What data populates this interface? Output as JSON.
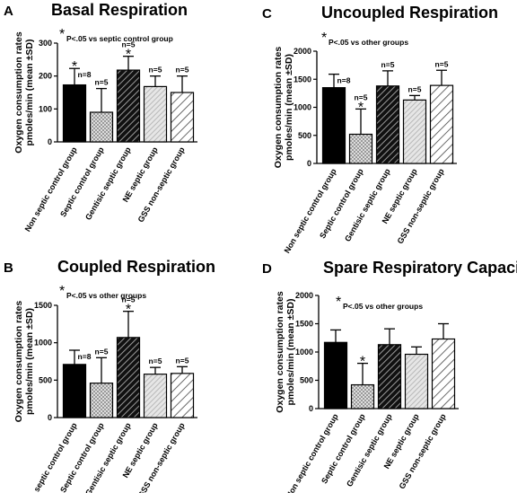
{
  "categories": [
    "Non septic control group",
    "Septic control group",
    "Gentisic septic group",
    "NE septic group",
    "GSS non-septic group"
  ],
  "ylabel_lines": [
    "Oxygen consumption rates",
    "pmoles/min (mean ±SD)"
  ],
  "colors": {
    "non_septic_control": "#000000",
    "septic_control": "#bdbdbd",
    "gentisic_septic": "#2b2b2b",
    "ne_septic": "#cfcfcf",
    "gss_non_septic": "#ffffff"
  },
  "chart_data": [
    {
      "panel": "A",
      "type": "bar",
      "title": "Basal Respiration",
      "annotation": "P<.05 vs septic control group",
      "annotation_star": "*",
      "ylim": [
        0,
        300
      ],
      "yticks": [
        0,
        100,
        200,
        300
      ],
      "categories": [
        "Non septic control group",
        "Septic control group",
        "Gentisic septic group",
        "NE septic group",
        "GSS non-septic group"
      ],
      "values": [
        173,
        90,
        218,
        168,
        150
      ],
      "errors": [
        50,
        72,
        42,
        32,
        50
      ],
      "n_labels": [
        "n=8",
        "n=5",
        "n=5",
        "n=5",
        "n=5"
      ],
      "significance": [
        "*",
        "",
        "*",
        "",
        ""
      ]
    },
    {
      "panel": "C",
      "type": "bar",
      "title": "Uncoupled Respiration",
      "annotation": "P<.05 vs other groups",
      "annotation_star": "*",
      "ylim": [
        0,
        2000
      ],
      "yticks": [
        0,
        500,
        1000,
        1500,
        2000
      ],
      "categories": [
        "Non septic control group",
        "Septic control group",
        "Gentisic septic group",
        "NE septic group",
        "GSS non-septic group"
      ],
      "values": [
        1350,
        520,
        1380,
        1130,
        1390
      ],
      "errors": [
        240,
        450,
        270,
        80,
        270
      ],
      "n_labels": [
        "n=8",
        "n=5",
        "n=5",
        "n=5",
        "n=5"
      ],
      "significance": [
        "",
        "*",
        "",
        "",
        ""
      ]
    },
    {
      "panel": "B",
      "type": "bar",
      "title": "Coupled Respiration",
      "annotation": "P<.05 vs other groups",
      "annotation_star": "*",
      "ylim": [
        0,
        1500
      ],
      "yticks": [
        0,
        500,
        1000,
        1500
      ],
      "categories": [
        "Non septic control group",
        "Septic control group",
        "Gentisic septic group",
        "NE septic group",
        "GSS non-septic group"
      ],
      "values": [
        710,
        460,
        1070,
        580,
        590
      ],
      "errors": [
        190,
        340,
        350,
        90,
        90
      ],
      "n_labels": [
        "n=8",
        "n=5",
        "n=5",
        "n=5",
        "n=5"
      ],
      "significance": [
        "",
        "",
        "*",
        "",
        ""
      ]
    },
    {
      "panel": "D",
      "type": "bar",
      "title": "Spare Respiratory Capacity",
      "annotation": "P<.05 vs other groups",
      "annotation_star": "*",
      "ylim": [
        0,
        2000
      ],
      "yticks": [
        0,
        500,
        1000,
        1500,
        2000
      ],
      "categories": [
        "Non septic control group",
        "Septic control group",
        "Gentisic septic group",
        "NE septic group",
        "GSS non-septic group"
      ],
      "values": [
        1170,
        420,
        1130,
        960,
        1230
      ],
      "errors": [
        220,
        380,
        280,
        130,
        270
      ],
      "n_labels": [
        "",
        "",
        "",
        "",
        ""
      ],
      "significance": [
        "",
        "*",
        "",
        "",
        ""
      ]
    }
  ]
}
